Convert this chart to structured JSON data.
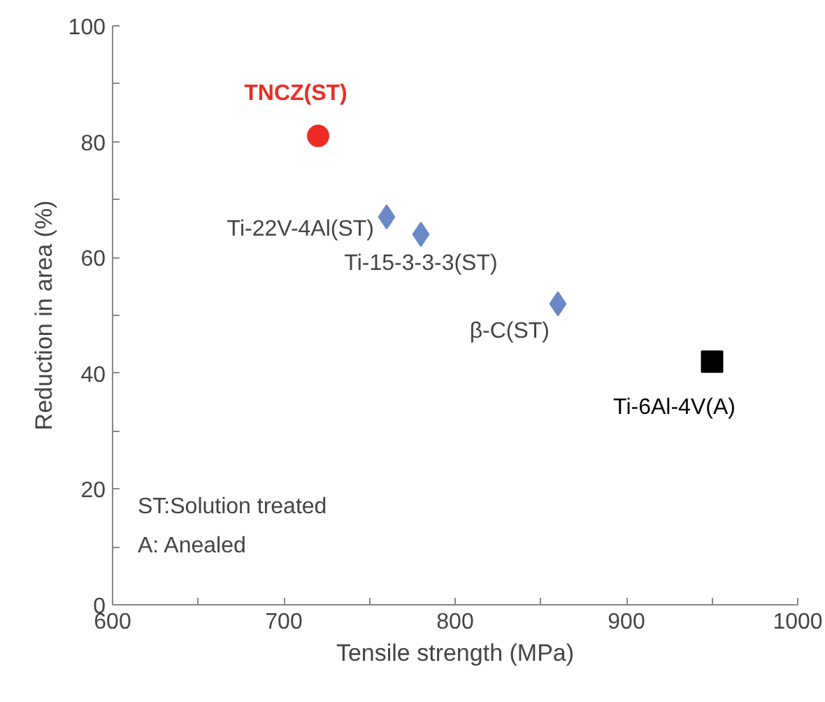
{
  "chart_data": {
    "type": "scatter",
    "xlabel": "Tensile strength (MPa)",
    "ylabel": "Reduction in area (%)",
    "xlim": [
      600,
      1000
    ],
    "ylim": [
      0,
      100
    ],
    "xticks": [
      600,
      {
        "value": 650,
        "label": null
      },
      700,
      {
        "value": 750,
        "label": null
      },
      800,
      {
        "value": 850,
        "label": null
      },
      900,
      {
        "value": 950,
        "label": null
      },
      1000
    ],
    "yticks": [
      0,
      {
        "value": 10,
        "label": null
      },
      20,
      {
        "value": 30,
        "label": null
      },
      40,
      {
        "value": 50,
        "label": null
      },
      60,
      {
        "value": 70,
        "label": null
      },
      80,
      {
        "value": 90,
        "label": null
      },
      100
    ],
    "grid": false,
    "series": [
      {
        "name": "TNCZ(ST)",
        "color": "#ee2b24",
        "marker": "circle",
        "x": [
          720
        ],
        "values": [
          81
        ]
      },
      {
        "color": "#6a89c6",
        "marker": "diamond",
        "x": [
          760,
          780,
          860
        ],
        "values": [
          67,
          64,
          52
        ]
      },
      {
        "name": "Ti-6Al-4V(A)",
        "color": "#000000",
        "marker": "square",
        "x": [
          950
        ],
        "values": [
          42
        ]
      }
    ],
    "annotations": [
      {
        "text": "Ti-22V-4Al(ST)",
        "x": 760,
        "y": 67
      },
      {
        "text": "Ti-15-3-3-3(ST)",
        "x": 780,
        "y": 64
      },
      {
        "text": "β-C(ST)",
        "x": 860,
        "y": 52
      },
      "ST:Solution treated",
      "A: Anealed"
    ]
  }
}
